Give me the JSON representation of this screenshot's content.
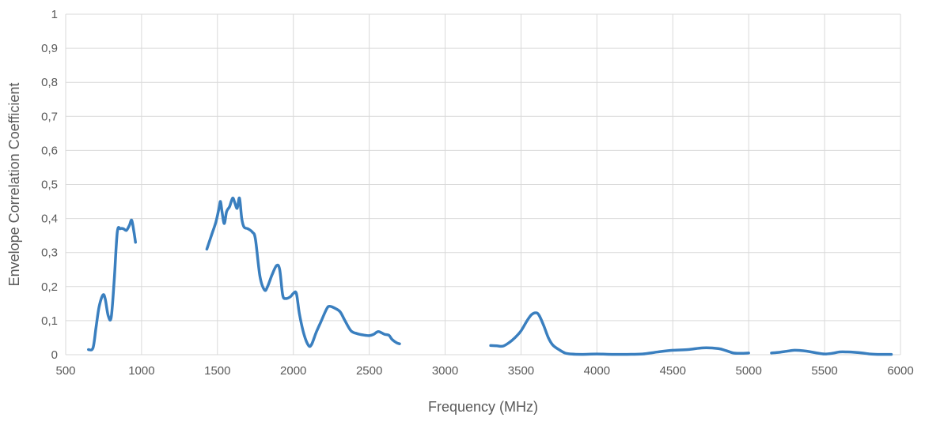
{
  "chart_data": {
    "type": "line",
    "title": "",
    "xlabel": "Frequency (MHz)",
    "ylabel": "Envelope Correlation Coefficient",
    "xlim": [
      500,
      6000
    ],
    "ylim": [
      0,
      1
    ],
    "x_ticks": [
      "500",
      "1000",
      "1500",
      "2000",
      "2500",
      "3000",
      "3500",
      "4000",
      "4500",
      "5000",
      "5500",
      "6000"
    ],
    "y_ticks": [
      "0",
      "0,1",
      "0,2",
      "0,3",
      "0,4",
      "0,5",
      "0,6",
      "0,7",
      "0,8",
      "0,9",
      "1"
    ],
    "grid": true,
    "legend": "none",
    "color": "#3a7fbf",
    "series": [
      {
        "segments": [
          [
            [
              650,
              0.015
            ],
            [
              680,
              0.02
            ],
            [
              700,
              0.08
            ],
            [
              720,
              0.14
            ],
            [
              745,
              0.175
            ],
            [
              760,
              0.165
            ],
            [
              780,
              0.115
            ],
            [
              800,
              0.11
            ],
            [
              820,
              0.22
            ],
            [
              840,
              0.36
            ],
            [
              860,
              0.37
            ],
            [
              880,
              0.37
            ],
            [
              900,
              0.365
            ],
            [
              920,
              0.38
            ],
            [
              935,
              0.395
            ],
            [
              950,
              0.36
            ],
            [
              960,
              0.33
            ]
          ],
          [
            [
              1430,
              0.31
            ],
            [
              1460,
              0.35
            ],
            [
              1490,
              0.39
            ],
            [
              1510,
              0.43
            ],
            [
              1520,
              0.45
            ],
            [
              1530,
              0.42
            ],
            [
              1545,
              0.385
            ],
            [
              1560,
              0.42
            ],
            [
              1580,
              0.435
            ],
            [
              1600,
              0.46
            ],
            [
              1615,
              0.445
            ],
            [
              1630,
              0.43
            ],
            [
              1645,
              0.46
            ],
            [
              1660,
              0.4
            ],
            [
              1675,
              0.375
            ],
            [
              1700,
              0.37
            ],
            [
              1730,
              0.36
            ],
            [
              1750,
              0.34
            ],
            [
              1780,
              0.23
            ],
            [
              1810,
              0.19
            ],
            [
              1830,
              0.2
            ],
            [
              1860,
              0.235
            ],
            [
              1890,
              0.262
            ],
            [
              1910,
              0.25
            ],
            [
              1930,
              0.175
            ],
            [
              1950,
              0.165
            ],
            [
              1980,
              0.17
            ],
            [
              2000,
              0.18
            ],
            [
              2020,
              0.18
            ],
            [
              2040,
              0.12
            ],
            [
              2070,
              0.06
            ],
            [
              2100,
              0.027
            ],
            [
              2120,
              0.03
            ],
            [
              2150,
              0.065
            ],
            [
              2180,
              0.095
            ],
            [
              2220,
              0.135
            ],
            [
              2240,
              0.142
            ],
            [
              2280,
              0.135
            ],
            [
              2310,
              0.125
            ],
            [
              2340,
              0.1
            ],
            [
              2380,
              0.07
            ],
            [
              2420,
              0.062
            ],
            [
              2460,
              0.058
            ],
            [
              2500,
              0.056
            ],
            [
              2530,
              0.06
            ],
            [
              2560,
              0.068
            ],
            [
              2600,
              0.06
            ],
            [
              2630,
              0.057
            ],
            [
              2650,
              0.045
            ],
            [
              2680,
              0.035
            ],
            [
              2700,
              0.032
            ]
          ],
          [
            [
              3300,
              0.027
            ],
            [
              3340,
              0.026
            ],
            [
              3380,
              0.025
            ],
            [
              3420,
              0.035
            ],
            [
              3460,
              0.05
            ],
            [
              3500,
              0.07
            ],
            [
              3540,
              0.1
            ],
            [
              3570,
              0.118
            ],
            [
              3600,
              0.123
            ],
            [
              3620,
              0.115
            ],
            [
              3650,
              0.085
            ],
            [
              3680,
              0.05
            ],
            [
              3710,
              0.028
            ],
            [
              3750,
              0.015
            ],
            [
              3790,
              0.005
            ],
            [
              3830,
              0.002
            ],
            [
              3900,
              0.001
            ],
            [
              4000,
              0.002
            ],
            [
              4100,
              0.001
            ],
            [
              4200,
              0.001
            ],
            [
              4300,
              0.002
            ],
            [
              4400,
              0.008
            ],
            [
              4500,
              0.013
            ],
            [
              4600,
              0.015
            ],
            [
              4700,
              0.02
            ],
            [
              4800,
              0.018
            ],
            [
              4850,
              0.012
            ],
            [
              4900,
              0.005
            ],
            [
              4950,
              0.004
            ],
            [
              5000,
              0.005
            ]
          ],
          [
            [
              5150,
              0.005
            ],
            [
              5200,
              0.007
            ],
            [
              5250,
              0.01
            ],
            [
              5300,
              0.013
            ],
            [
              5350,
              0.012
            ],
            [
              5400,
              0.009
            ],
            [
              5450,
              0.005
            ],
            [
              5500,
              0.002
            ],
            [
              5550,
              0.004
            ],
            [
              5600,
              0.008
            ],
            [
              5650,
              0.008
            ],
            [
              5700,
              0.007
            ],
            [
              5750,
              0.005
            ],
            [
              5800,
              0.002
            ],
            [
              5850,
              0.001
            ],
            [
              5900,
              0.001
            ],
            [
              5940,
              0.001
            ]
          ]
        ]
      }
    ]
  }
}
